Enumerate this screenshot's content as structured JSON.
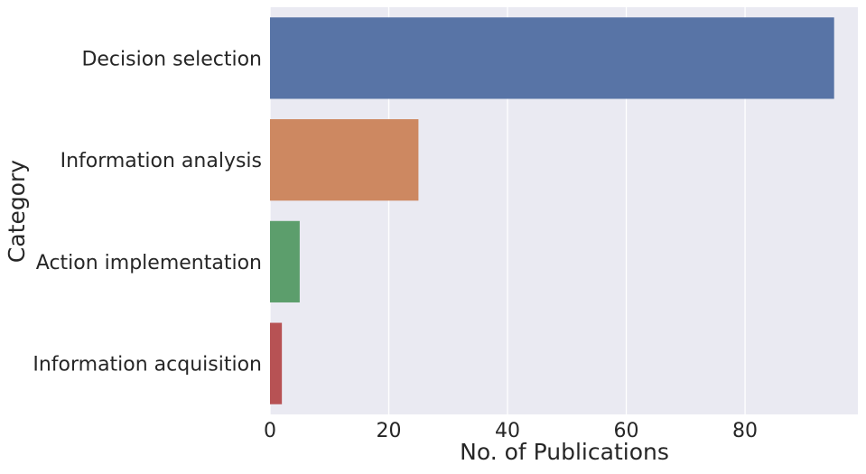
{
  "chart_data": {
    "type": "bar",
    "orientation": "horizontal",
    "categories": [
      "Decision selection",
      "Information analysis",
      "Action implementation",
      "Information acquisition"
    ],
    "values": [
      95,
      25,
      5,
      2
    ],
    "colors": [
      "#5874a6",
      "#cd8861",
      "#5c9e6c",
      "#b75254"
    ],
    "xlabel": "No. of Publications",
    "ylabel": "Category",
    "xlim": [
      0,
      99
    ],
    "xticks": [
      0,
      20,
      40,
      60,
      80
    ],
    "grid": true,
    "background": "#eaeaf2",
    "grid_color": "#ffffff"
  }
}
